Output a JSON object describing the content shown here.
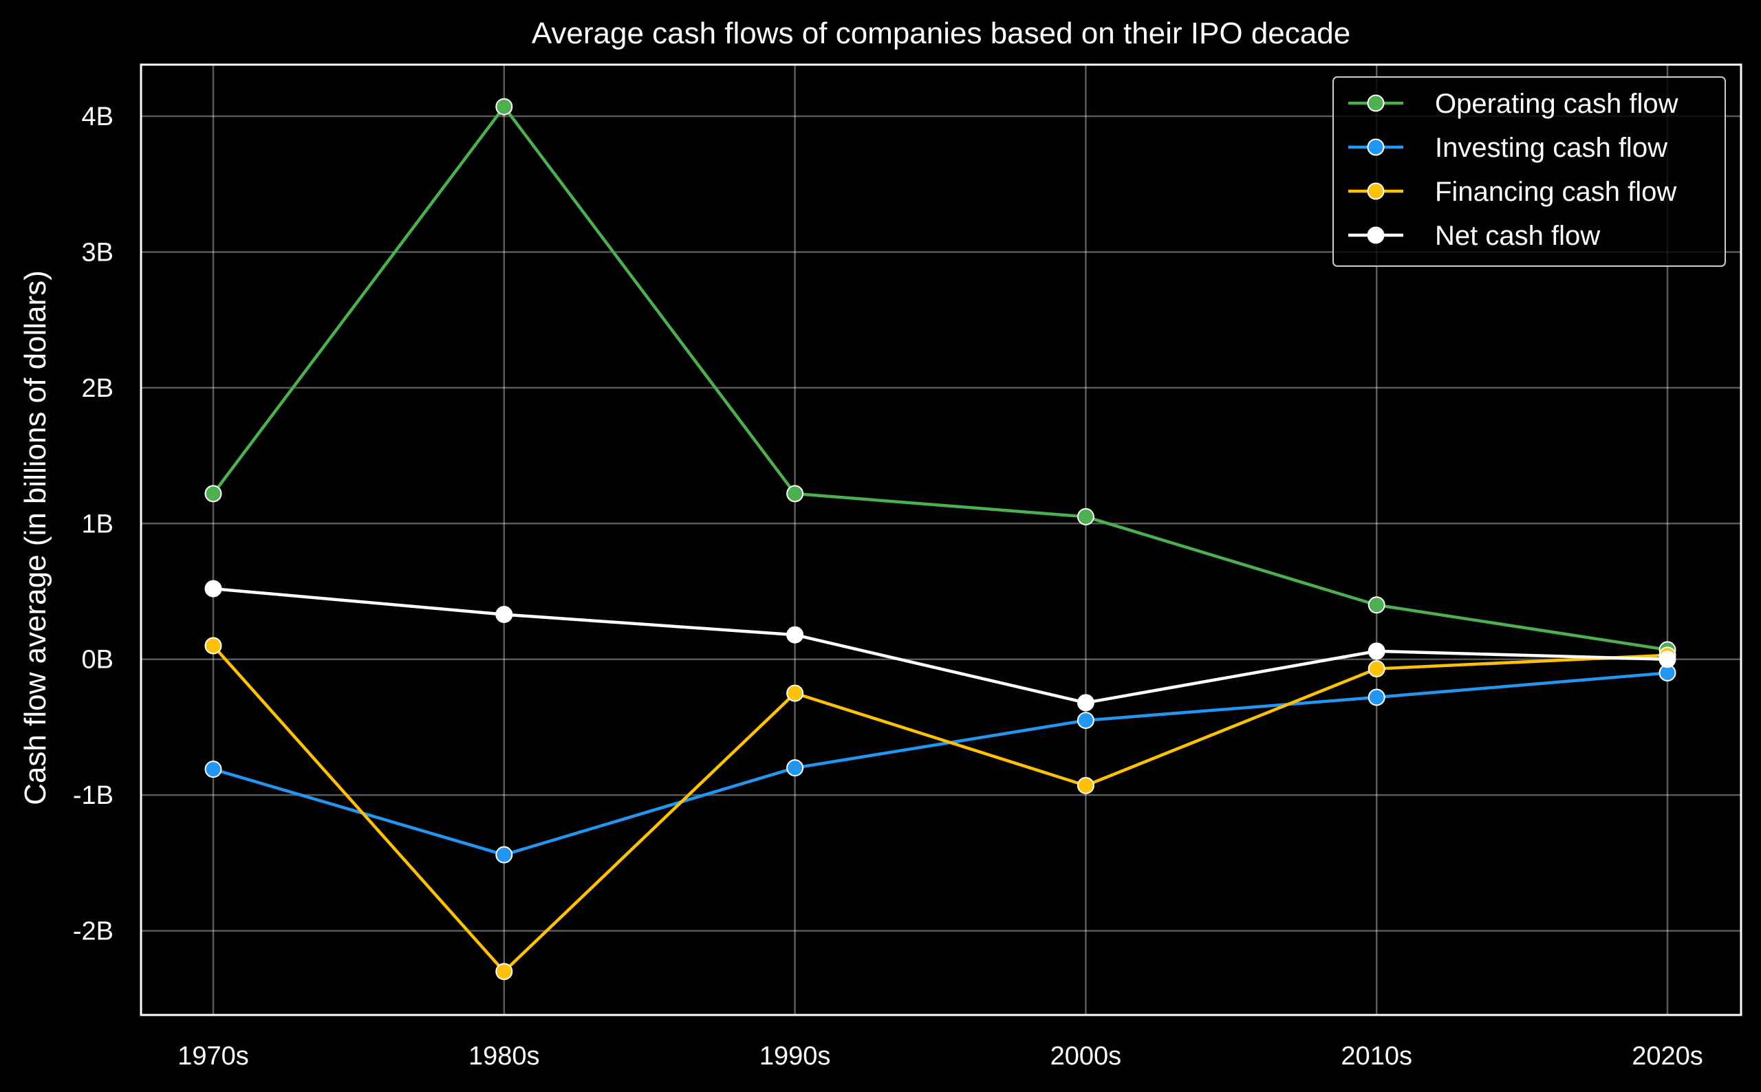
{
  "chart_data": {
    "type": "line",
    "title": "Average cash flows of companies based on their IPO decade",
    "xlabel": "",
    "ylabel": "Cash flow average (in billions of dollars)",
    "categories": [
      "1970s",
      "1980s",
      "1990s",
      "2000s",
      "2010s",
      "2020s"
    ],
    "ylim": [
      -2.62,
      4.38
    ],
    "yticks": [
      -2,
      -1,
      0,
      1,
      2,
      3,
      4
    ],
    "ytick_labels": [
      "-2B",
      "-1B",
      "0B",
      "1B",
      "2B",
      "3B",
      "4B"
    ],
    "grid": true,
    "legend_position": "top-right",
    "series": [
      {
        "name": "Operating cash flow",
        "color": "#4caf50",
        "values": [
          1.22,
          4.07,
          1.22,
          1.05,
          0.4,
          0.07
        ]
      },
      {
        "name": "Investing cash flow",
        "color": "#2196f3",
        "values": [
          -0.81,
          -1.44,
          -0.8,
          -0.45,
          -0.28,
          -0.1
        ]
      },
      {
        "name": "Financing cash flow",
        "color": "#ffc107",
        "values": [
          0.1,
          -2.3,
          -0.25,
          -0.93,
          -0.07,
          0.03
        ]
      },
      {
        "name": "Net cash flow",
        "color": "#ffffff",
        "values": [
          0.52,
          0.33,
          0.18,
          -0.32,
          0.06,
          0.0
        ]
      }
    ]
  }
}
